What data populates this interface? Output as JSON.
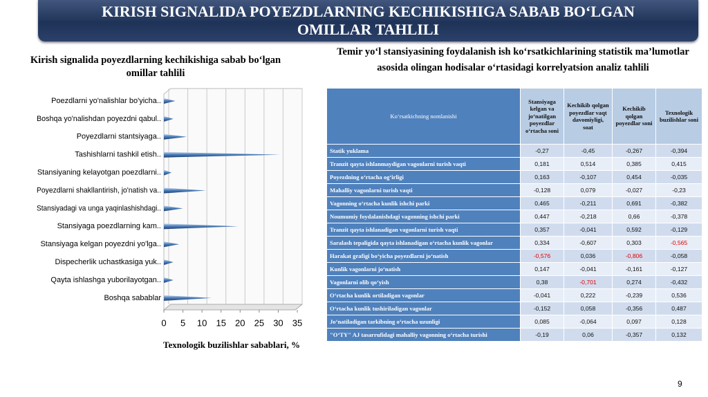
{
  "header": {
    "title": "KIRISH SIGNALIDA POYEZDLARNING KECHIKISHIGA SABAB BO‘LGAN OMILLAR TAHLILI"
  },
  "chart_data": {
    "type": "bar",
    "orientation": "horizontal",
    "title": "Kirish signalida poyezdlarning kechikishiga sabab bo‘lgan omillar tahlili",
    "x_label": "Texnologik buzilishlar sabablari, %",
    "categories": [
      "Poezdlarni yo'nalishlar bo'yicha..",
      "Boshqa yo'nalishdan poyezdni qabul..",
      "Poyezdlarni stantsiyaga..",
      "Tashishlarni tashkil etish..",
      "Stansiyaning kelayotgan poezdlarni..",
      "Poyezdlarni shakllantirish, jo'natish va..",
      "Stansiyadagi va unga yaqinlashishdagi..",
      "Stansiyaga poezdlarning kam..",
      "Stansiyaga kelgan poyezdni yo'lga..",
      "Dispecherlik uchastkasiga yuk..",
      "Qayta ishlashga yuborilayotgan..",
      "Boshqa sabablar"
    ],
    "values": [
      3,
      2.5,
      6,
      30.5,
      2,
      11,
      5,
      19.5,
      4,
      2.5,
      2.5,
      12.5
    ],
    "color": "#4f81bd",
    "xlim": [
      0,
      35
    ],
    "xticks": [
      0,
      5,
      10,
      15,
      20,
      25,
      30,
      35
    ],
    "grid": true
  },
  "table": {
    "title": "Temir yo‘l stansiyasining foydalanish ish ko‘rsatkichlarining statistik ma’lumotlar asosida olingan hodisalar o‘rtasidagi korrelyatsion analiz tahlili",
    "columns": [
      "Ko‘rsatkichning nomlanishi",
      "Stansiyaga kelgan va jo‘natilgan poyezdlar o‘rtacha soni",
      "Kechikib qolgan poyezdlar vaqt davomiyligi, soat",
      "Kechikib qolgan poyezdlar soni",
      "Texnologik buzilishlar soni"
    ],
    "rows": [
      [
        "Statik yuklama",
        "-0,27",
        "-0,45",
        "-0,267",
        "-0,394"
      ],
      [
        "Tranzit qayta ishlanmaydigan vagonlarni turish vaqti",
        "0,181",
        "0,514",
        "0,385",
        "0,415"
      ],
      [
        "Poyezdning o‘rtacha og‘irligi",
        "0,163",
        "-0,107",
        "0,454",
        "-0,035"
      ],
      [
        "Mahalliy vagonlarni turish vaqti",
        "-0,128",
        "0,079",
        "-0,027",
        "-0,23"
      ],
      [
        "Vagonning o‘rtacha kunlik ishchi parki",
        "0,465",
        "-0,211",
        "0,691",
        "-0,382"
      ],
      [
        "Noumumiy foydalanishdagi vagonning ishchi parki",
        "0,447",
        "-0,218",
        "0,66",
        "-0,378"
      ],
      [
        "Tranzit qayta ishlanadigan vagonlarni turish vaqti",
        "0,357",
        "-0,041",
        "0,592",
        "-0,129"
      ],
      [
        "Saralash tepaligida qayta ishlanadigan o‘rtacha kunlik vagonlar",
        "0,334",
        "-0,607",
        "0,303",
        {
          "text": "-0,565",
          "color": "#e00000"
        }
      ],
      [
        "Harakat grafigi bo‘yicha poyezdlarni jo‘natish",
        {
          "text": "-0,576",
          "color": "#e00000"
        },
        "0,036",
        {
          "text": "-0,806",
          "color": "#e00000"
        },
        "-0,058"
      ],
      [
        "Kunlik vagonlarni jo‘natish",
        "0,147",
        "-0,041",
        "-0,161",
        "-0,127"
      ],
      [
        "Vagonlarni olib qo‘yish",
        "0,38",
        {
          "text": "-0,701",
          "color": "#e00000"
        },
        "0,274",
        "-0,432"
      ],
      [
        "O‘rtacha kunlik ortiladigan vagonlar",
        "-0,041",
        "0,222",
        "-0,239",
        "0,536"
      ],
      [
        "O‘rtacha kunlik tushiriladigan vagonlar",
        "-0,152",
        "0,058",
        "-0,356",
        "0,487"
      ],
      [
        "Jo‘natiladigan tarkibning o‘rtacha uzunligi",
        "0,085",
        "-0,064",
        "0,097",
        "0,128"
      ],
      [
        "\"O‘TY\" AJ tasarrufidagi mahalliy vagonning o‘rtacha turishi",
        "-0,19",
        "0,06",
        "-0,357",
        "0,132"
      ]
    ]
  },
  "footer": {
    "page_number": "9"
  }
}
